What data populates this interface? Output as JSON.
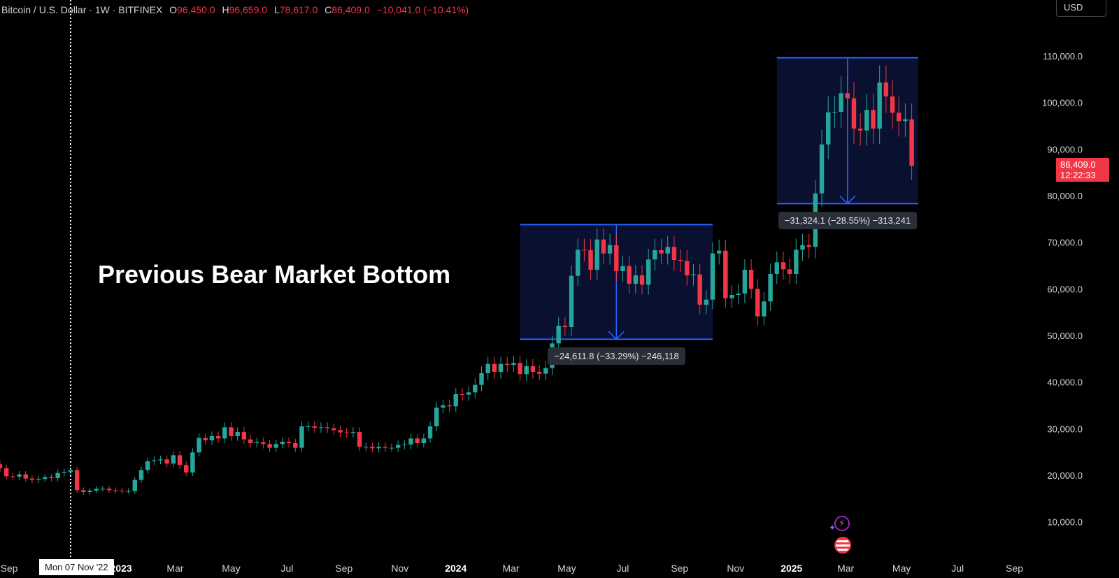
{
  "header": {
    "symbol": "Bitcoin / U.S. Dollar · 1W · BITFINEX",
    "open_label": "O",
    "open": "96,450.0",
    "high_label": "H",
    "high": "96,659.0",
    "low_label": "L",
    "low": "78,617.0",
    "close_label": "C",
    "close": "86,409.0",
    "change": "−10,041.0 (−10.41%)"
  },
  "currency": "USD",
  "annotation": "Previous Bear Market Bottom",
  "price_tag": {
    "price": "86,409.0",
    "countdown": "12:22:33"
  },
  "crosshair_date": "Mon 07 Nov '22",
  "measures": [
    {
      "label": "−24,611.8 (−33.29%) −246,118",
      "start": "2024-03-11",
      "end": "2024-10-07",
      "top": 73800,
      "bottom": 49200
    },
    {
      "label": "−31,324.1 (−28.55%) −313,241",
      "start": "2024-12-16",
      "end": "2025-05-19",
      "top": 109600,
      "bottom": 78300
    }
  ],
  "colors": {
    "up": "#26a69a",
    "down": "#f23645",
    "box": "#2962ff",
    "box_fill": "#0a1030"
  },
  "icons": [
    "lightning-icon",
    "us-flag-icon"
  ],
  "chart_data": {
    "type": "candlestick",
    "title": "",
    "ylim": [
      5000,
      116000
    ],
    "xlim": [
      "2022-08-22",
      "2025-09-22"
    ],
    "y_ticks": [
      10000,
      20000,
      30000,
      40000,
      50000,
      60000,
      70000,
      80000,
      90000,
      100000,
      110000
    ],
    "y_tick_labels": [
      "10,000.0",
      "20,000.0",
      "30,000.0",
      "40,000.0",
      "50,000.0",
      "60,000.0",
      "70,000.0",
      "80,000.0",
      "90,000.0",
      "100,000.0",
      "110,000.0"
    ],
    "x_ticks": [
      {
        "date": "2022-09-01",
        "label": "Sep"
      },
      {
        "date": "2023-01-01",
        "label": "2023"
      },
      {
        "date": "2023-03-01",
        "label": "Mar"
      },
      {
        "date": "2023-05-01",
        "label": "May"
      },
      {
        "date": "2023-07-01",
        "label": "Jul"
      },
      {
        "date": "2023-09-01",
        "label": "Sep"
      },
      {
        "date": "2023-11-01",
        "label": "Nov"
      },
      {
        "date": "2024-01-01",
        "label": "2024"
      },
      {
        "date": "2024-03-01",
        "label": "Mar"
      },
      {
        "date": "2024-05-01",
        "label": "May"
      },
      {
        "date": "2024-07-01",
        "label": "Jul"
      },
      {
        "date": "2024-09-01",
        "label": "Sep"
      },
      {
        "date": "2024-11-01",
        "label": "Nov"
      },
      {
        "date": "2025-01-01",
        "label": "2025"
      },
      {
        "date": "2025-03-01",
        "label": "Mar"
      },
      {
        "date": "2025-05-01",
        "label": "May"
      },
      {
        "date": "2025-07-01",
        "label": "Jul"
      },
      {
        "date": "2025-09-01",
        "label": "Sep"
      }
    ],
    "crosshair_x": "2022-11-07",
    "first_week": "2022-08-22",
    "close": [
      21500,
      19800,
      19700,
      20200,
      19300,
      19000,
      19200,
      19600,
      19400,
      20500,
      20700,
      21100,
      16800,
      16400,
      16700,
      17100,
      17100,
      16800,
      16700,
      16600,
      16600,
      19000,
      21100,
      23000,
      23200,
      23400,
      22500,
      24300,
      22200,
      20600,
      24900,
      28000,
      27500,
      28400,
      27900,
      30300,
      28400,
      29300,
      27700,
      26900,
      27100,
      26700,
      25900,
      26700,
      27200,
      26900,
      25900,
      30500,
      30500,
      30200,
      30300,
      30100,
      29700,
      29200,
      29100,
      29300,
      26100,
      26100,
      25800,
      26100,
      25900,
      25900,
      26500,
      26600,
      27900,
      26900,
      27900,
      30500,
      34500,
      35000,
      34800,
      37400,
      37300,
      37800,
      39400,
      41900,
      43900,
      42200,
      43900,
      43700,
      44100,
      41700,
      43400,
      42200,
      41800,
      43000,
      48300,
      52100,
      51800,
      62800,
      68400,
      68300,
      64100,
      70600,
      67600,
      69400,
      63800,
      64900,
      61100,
      62900,
      60900,
      66300,
      68300,
      67600,
      69000,
      66200,
      66000,
      62900,
      63100,
      56600,
      57700,
      67600,
      68200,
      58000,
      58700,
      59000,
      64100,
      60000,
      54100,
      57300,
      63200,
      65700,
      64200,
      63200,
      68400,
      69400,
      69000,
      80500,
      91000,
      97900,
      98000,
      102000,
      100900,
      94400,
      94000,
      98400,
      94400,
      104300,
      101300,
      97800,
      96000,
      96400,
      86400
    ]
  }
}
